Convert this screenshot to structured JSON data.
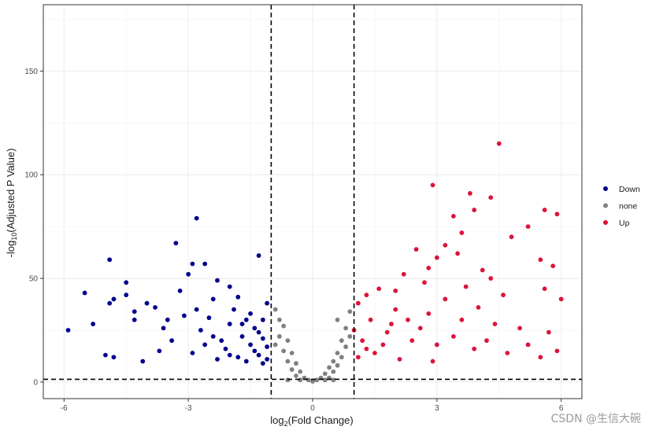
{
  "chart_data": {
    "type": "scatter",
    "title": "",
    "xlabel_prefix": "log",
    "xlabel_sub": "2",
    "xlabel_rest": "(Fold Change)",
    "ylabel_prefix": "-log",
    "ylabel_sub": "10",
    "ylabel_rest": "(Adjusted P Value)",
    "xlim": [
      -6.5,
      6.5
    ],
    "ylim": [
      -8,
      182
    ],
    "x_ticks": [
      -6,
      -3,
      0,
      3,
      6
    ],
    "x_tick_labels": [
      "-6",
      "-3",
      "0",
      "3",
      "6"
    ],
    "y_ticks": [
      0,
      50,
      100,
      150
    ],
    "y_tick_labels": [
      "0",
      "50",
      "100",
      "150"
    ],
    "grid": true,
    "legend_position": "right",
    "thresholds": {
      "logfc": [
        -1,
        1
      ],
      "neg_log10_p": 1.3
    },
    "series": [
      {
        "name": "Down",
        "color": "#00008b",
        "points": [
          [
            -5.9,
            25
          ],
          [
            -5.5,
            43
          ],
          [
            -5.3,
            28
          ],
          [
            -5.0,
            13
          ],
          [
            -4.9,
            59
          ],
          [
            -4.9,
            38
          ],
          [
            -4.8,
            40
          ],
          [
            -4.8,
            12
          ],
          [
            -4.5,
            48
          ],
          [
            -4.5,
            42
          ],
          [
            -4.3,
            34
          ],
          [
            -4.3,
            30
          ],
          [
            -4.1,
            10
          ],
          [
            -4.0,
            38
          ],
          [
            -3.8,
            36
          ],
          [
            -3.6,
            26
          ],
          [
            -3.3,
            67
          ],
          [
            -3.2,
            44
          ],
          [
            -3.0,
            52
          ],
          [
            -2.9,
            57
          ],
          [
            -2.8,
            79
          ],
          [
            -2.6,
            57
          ],
          [
            -2.4,
            40
          ],
          [
            -2.3,
            49
          ],
          [
            -2.0,
            46
          ],
          [
            -1.8,
            41
          ],
          [
            -1.3,
            61
          ],
          [
            -3.4,
            20
          ],
          [
            -3.1,
            32
          ],
          [
            -2.7,
            25
          ],
          [
            -2.5,
            31
          ],
          [
            -2.2,
            20
          ],
          [
            -2.0,
            28
          ],
          [
            -1.9,
            35
          ],
          [
            -1.7,
            22
          ],
          [
            -1.6,
            30
          ],
          [
            -1.5,
            18
          ],
          [
            -1.4,
            26
          ],
          [
            -1.3,
            13
          ],
          [
            -1.2,
            21
          ],
          [
            -1.1,
            38
          ],
          [
            -2.9,
            14
          ],
          [
            -2.6,
            18
          ],
          [
            -2.3,
            11
          ],
          [
            -2.1,
            16
          ],
          [
            -1.8,
            12
          ],
          [
            -1.6,
            10
          ],
          [
            -1.4,
            15
          ],
          [
            -1.2,
            9
          ],
          [
            -1.1,
            17
          ],
          [
            -3.7,
            15
          ],
          [
            -3.5,
            30
          ],
          [
            -2.8,
            35
          ],
          [
            -2.4,
            22
          ],
          [
            -2.0,
            13
          ],
          [
            -1.7,
            28
          ],
          [
            -1.5,
            33
          ],
          [
            -1.3,
            24
          ],
          [
            -1.2,
            30
          ],
          [
            -1.1,
            11
          ]
        ]
      },
      {
        "name": "none",
        "color": "#808080",
        "points": [
          [
            -0.9,
            35
          ],
          [
            -0.8,
            30
          ],
          [
            -0.8,
            22
          ],
          [
            -0.7,
            27
          ],
          [
            -0.7,
            15
          ],
          [
            -0.6,
            20
          ],
          [
            -0.6,
            10
          ],
          [
            -0.5,
            14
          ],
          [
            -0.5,
            6
          ],
          [
            -0.4,
            9
          ],
          [
            -0.4,
            3
          ],
          [
            -0.3,
            5
          ],
          [
            -0.2,
            2
          ],
          [
            -0.1,
            1
          ],
          [
            0.0,
            0.3
          ],
          [
            0.1,
            1
          ],
          [
            0.2,
            2
          ],
          [
            0.3,
            4
          ],
          [
            0.4,
            7
          ],
          [
            0.4,
            2
          ],
          [
            0.5,
            10
          ],
          [
            0.5,
            5
          ],
          [
            0.6,
            14
          ],
          [
            0.6,
            8
          ],
          [
            0.7,
            20
          ],
          [
            0.7,
            12
          ],
          [
            0.8,
            26
          ],
          [
            0.8,
            17
          ],
          [
            0.9,
            34
          ],
          [
            0.9,
            22
          ],
          [
            0.6,
            30
          ],
          [
            -0.9,
            18
          ],
          [
            0.3,
            1
          ],
          [
            -0.3,
            1
          ],
          [
            0.5,
            1
          ],
          [
            -0.6,
            1
          ]
        ]
      },
      {
        "name": "Up",
        "color": "#dc143c",
        "points": [
          [
            4.5,
            115
          ],
          [
            2.9,
            95
          ],
          [
            3.8,
            91
          ],
          [
            4.3,
            89
          ],
          [
            3.4,
            80
          ],
          [
            3.9,
            83
          ],
          [
            5.6,
            83
          ],
          [
            5.9,
            81
          ],
          [
            3.6,
            72
          ],
          [
            5.2,
            75
          ],
          [
            4.8,
            70
          ],
          [
            3.2,
            66
          ],
          [
            2.5,
            64
          ],
          [
            5.5,
            59
          ],
          [
            3.0,
            60
          ],
          [
            5.8,
            56
          ],
          [
            4.1,
            54
          ],
          [
            2.2,
            52
          ],
          [
            2.7,
            48
          ],
          [
            5.6,
            45
          ],
          [
            4.6,
            42
          ],
          [
            1.6,
            45
          ],
          [
            1.3,
            42
          ],
          [
            6.0,
            40
          ],
          [
            1.1,
            38
          ],
          [
            2.0,
            35
          ],
          [
            2.8,
            33
          ],
          [
            3.6,
            30
          ],
          [
            4.4,
            28
          ],
          [
            5.0,
            26
          ],
          [
            5.7,
            24
          ],
          [
            1.4,
            30
          ],
          [
            1.8,
            24
          ],
          [
            2.4,
            20
          ],
          [
            3.0,
            18
          ],
          [
            3.9,
            16
          ],
          [
            4.7,
            14
          ],
          [
            5.5,
            12
          ],
          [
            1.2,
            20
          ],
          [
            1.5,
            14
          ],
          [
            2.1,
            11
          ],
          [
            2.9,
            10
          ],
          [
            3.4,
            22
          ],
          [
            4.2,
            20
          ],
          [
            5.2,
            18
          ],
          [
            5.9,
            15
          ],
          [
            1.1,
            12
          ],
          [
            1.7,
            18
          ],
          [
            2.6,
            26
          ],
          [
            3.2,
            40
          ],
          [
            3.7,
            46
          ],
          [
            4.0,
            36
          ],
          [
            2.3,
            30
          ],
          [
            1.9,
            28
          ],
          [
            1.3,
            16
          ],
          [
            1.0,
            25
          ],
          [
            2.0,
            44
          ],
          [
            2.8,
            55
          ],
          [
            3.5,
            62
          ],
          [
            4.3,
            50
          ]
        ]
      }
    ]
  },
  "watermark": "CSDN @生信大碗"
}
